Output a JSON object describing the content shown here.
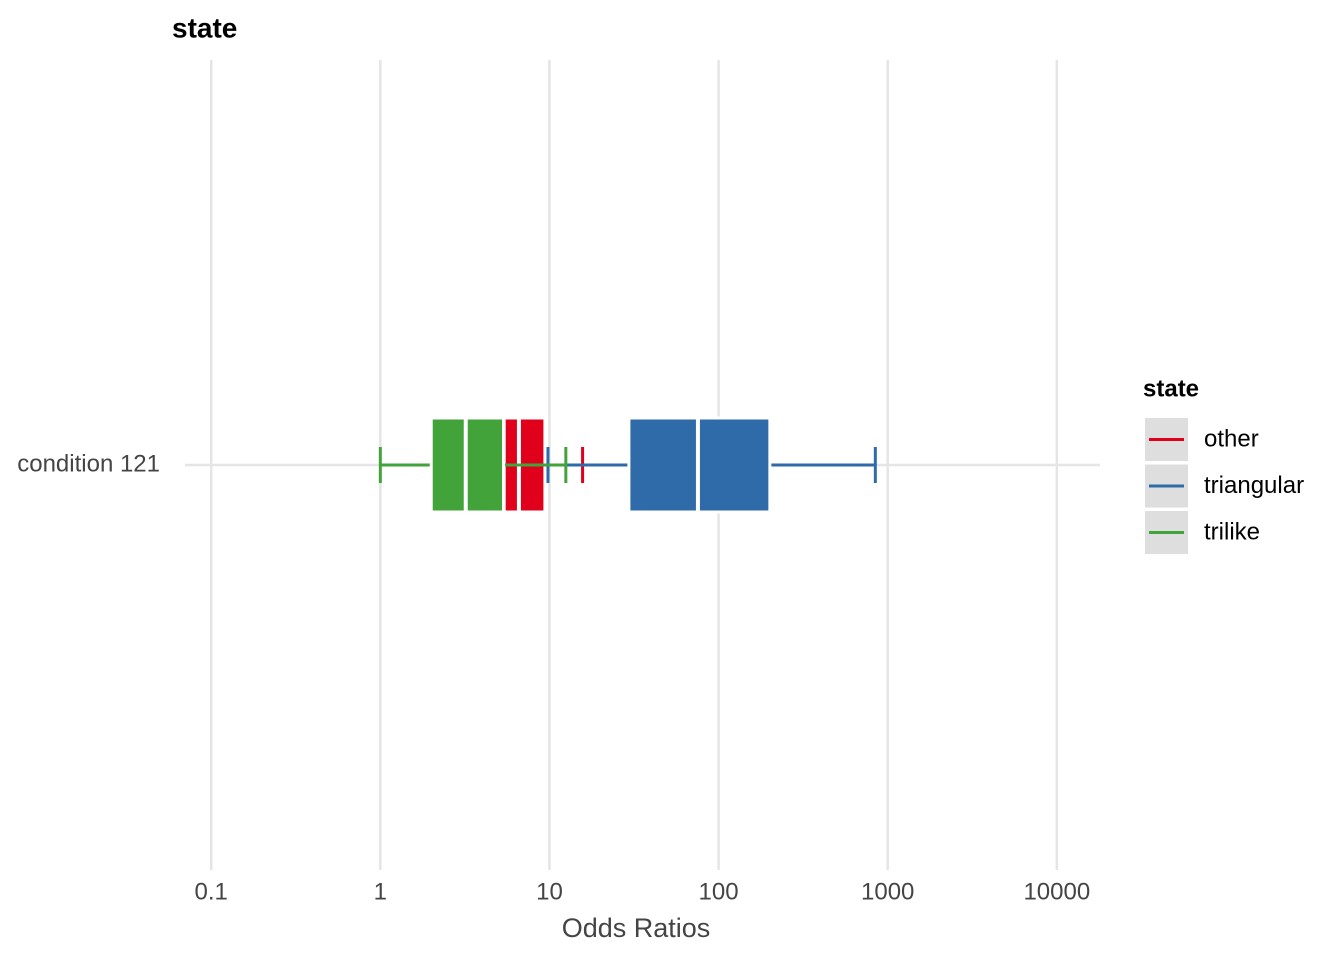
{
  "chart_data": {
    "type": "boxplot",
    "title": "state",
    "xlabel": "Odds Ratios",
    "categories": [
      "condition 121"
    ],
    "log_x": true,
    "grid": true,
    "xlim": [
      0.07,
      18000
    ],
    "xticks": [
      0.1,
      1,
      10,
      100,
      1000,
      10000
    ],
    "legend_title": "state",
    "legend_position": "right",
    "series": [
      {
        "name": "other",
        "color": "#e0001b",
        "min": 3,
        "q1": 5.4,
        "median": 6.6,
        "q3": 9.4,
        "max": 15.7
      },
      {
        "name": "triangular",
        "color": "#2e6ba8",
        "min": 9.8,
        "q1": 29.5,
        "median": 75.5,
        "q3": 201,
        "max": 845
      },
      {
        "name": "trilike",
        "color": "#41a33a",
        "min": 1,
        "q1": 2,
        "median": 3.2,
        "q3": 5.35,
        "max": 12.5
      }
    ]
  }
}
